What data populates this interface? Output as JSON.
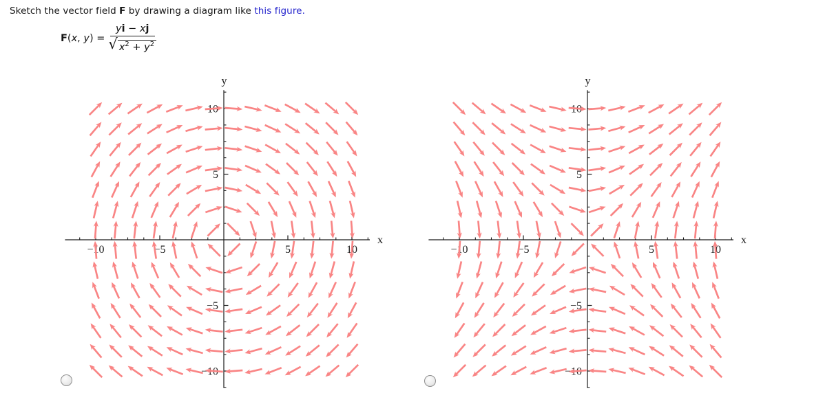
{
  "prompt": {
    "prefix": "Sketch the vector field ",
    "field_symbol": "F",
    "middle": " by drawing a diagram like ",
    "link_text": "this figure."
  },
  "formula": {
    "func": "F",
    "open": "(",
    "var1": "x",
    "comma": ", ",
    "var2": "y",
    "close": ")",
    "eq": " = ",
    "num_v1": "y",
    "num_b1": "i",
    "num_op": " − ",
    "num_v2": "x",
    "num_b2": "j",
    "sqrt": "√",
    "den_v1": "x",
    "den_e1": "2",
    "den_op": " + ",
    "den_v2": "y",
    "den_e2": "2"
  },
  "answers": {
    "options": [
      {
        "name": "left-diagram",
        "selected": false
      },
      {
        "name": "right-diagram",
        "selected": false
      }
    ]
  },
  "colors": {
    "arrow": "#f98585",
    "axis": "#1c1c1c",
    "link": "#2525cd",
    "radio_border": "#8e8e8e"
  },
  "chart_data": [
    {
      "type": "vector_field",
      "id": "left-plot",
      "expression": "F(x,y) = (y i − x j)/sqrt(x^2+y^2)",
      "fx": "y",
      "fy": "-x",
      "normalized": true,
      "description": "unit vectors circulating clockwise around the origin",
      "grid": {
        "min": -10,
        "max": 10,
        "points": 14
      },
      "xlabel": "x",
      "ylabel": "y",
      "xlim": [
        -12.4,
        11.4
      ],
      "ylim": [
        -11.3,
        11.4
      ],
      "major_ticks": [
        -10,
        -5,
        5,
        10
      ],
      "tick_labels": [
        "−10",
        "−5",
        "5",
        "10"
      ],
      "minor_tick_step": 1.25,
      "minor_tick_max": 11.25,
      "arrow_color": "#f98585"
    },
    {
      "type": "vector_field",
      "id": "right-plot",
      "expression": "G(x,y) = (y i + x j)/sqrt(x^2+y^2)",
      "fx": "y",
      "fy": "x",
      "normalized": true,
      "description": "unit vectors flowing in along y=−x and out along y=x (saddle pattern)",
      "grid": {
        "min": -10,
        "max": 10,
        "points": 14
      },
      "xlabel": "x",
      "ylabel": "y",
      "xlim": [
        -12.4,
        11.4
      ],
      "ylim": [
        -11.3,
        11.4
      ],
      "major_ticks": [
        -10,
        -5,
        5,
        10
      ],
      "tick_labels": [
        "−10",
        "−5",
        "5",
        "10"
      ],
      "minor_tick_step": 1.25,
      "minor_tick_max": 11.25,
      "arrow_color": "#f98585"
    }
  ]
}
